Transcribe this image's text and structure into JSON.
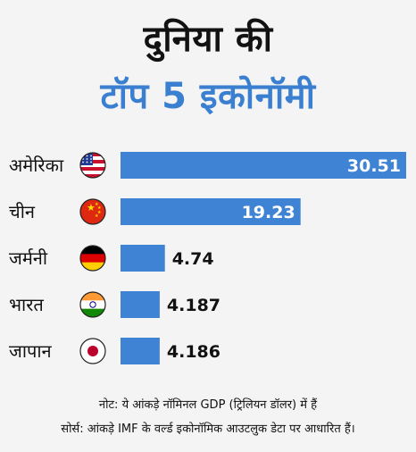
{
  "title": {
    "line1": "दुनिया की",
    "line2": "टॉप 5 इकोनॉमी"
  },
  "colors": {
    "accent": "#3a7fd0",
    "bar": "#3f83d4",
    "background": "#f4f4f4"
  },
  "chart_data": {
    "type": "bar",
    "orientation": "horizontal",
    "categories": [
      "अमेरिका",
      "चीन",
      "जर्मनी",
      "भारत",
      "जापान"
    ],
    "value_labels": [
      "30.51",
      "19.23",
      "4.74",
      "4.187",
      "4.186"
    ],
    "values": [
      30.51,
      19.23,
      4.74,
      4.187,
      4.186
    ],
    "flags": [
      "us-flag-icon",
      "china-flag-icon",
      "germany-flag-icon",
      "india-flag-icon",
      "japan-flag-icon"
    ],
    "xlim": [
      0,
      30.51
    ],
    "grid": false,
    "legend": "none"
  },
  "notes": {
    "line1": "नोट: ये आंकड़े नॉमिनल GDP (ट्रिलियन डॉलर) में हैं",
    "line2": "सोर्स: आंकड़े IMF के वर्ल्ड इकोनॉमिक आउटलुक डेटा पर आधारित हैं।"
  }
}
